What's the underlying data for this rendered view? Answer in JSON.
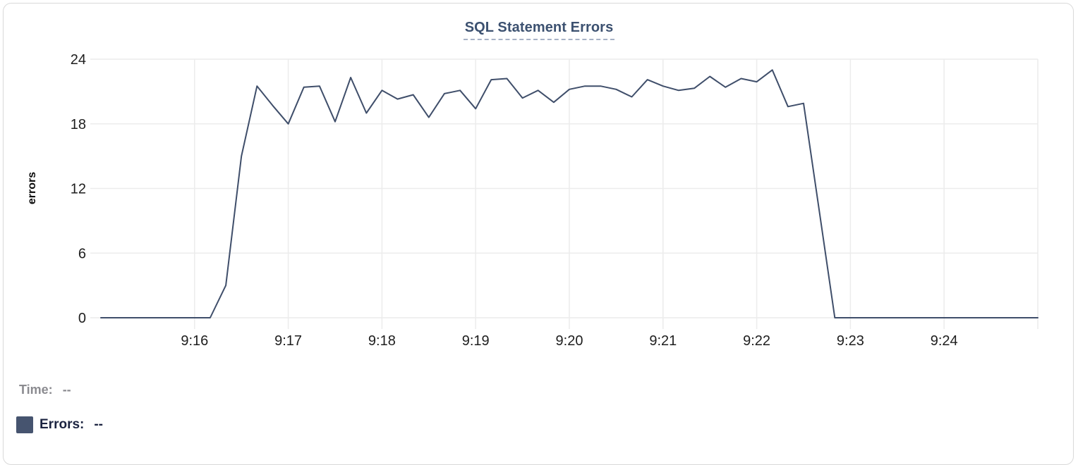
{
  "header": {
    "title": "SQL Statement Errors",
    "title_color": "#3c5170",
    "underline_color": "#a7b2c6"
  },
  "chart_data": {
    "type": "line",
    "title": "SQL Statement Errors",
    "xlabel": "",
    "ylabel": "errors",
    "ylim": [
      0,
      24
    ],
    "y_ticks": [
      0,
      6,
      12,
      18,
      24
    ],
    "x_ticks": [
      "9:16",
      "9:17",
      "9:18",
      "9:19",
      "9:20",
      "9:21",
      "9:22",
      "9:23",
      "9:24"
    ],
    "x_range_start": "9:15:00",
    "x_range_end": "9:25:00",
    "grid": true,
    "legend_position": "bottom-left",
    "line_color": "#3f4e6a",
    "grid_color": "#ececec",
    "tick_label_color": "#1e1e1e",
    "series": [
      {
        "name": "Errors",
        "x_start": "9:15:00",
        "x_step_seconds": 10,
        "values": [
          0,
          0,
          0,
          0,
          0,
          0,
          0,
          0,
          3,
          15,
          21.5,
          19.7,
          18,
          21.4,
          21.5,
          18.2,
          22.3,
          19,
          21.1,
          20.3,
          20.7,
          18.6,
          20.8,
          21.1,
          19.4,
          22.1,
          22.2,
          20.4,
          21.1,
          20,
          21.2,
          21.5,
          21.5,
          21.2,
          20.5,
          22.1,
          21.5,
          21.1,
          21.3,
          22.4,
          21.4,
          22.2,
          21.9,
          23,
          19.6,
          19.9,
          10,
          0,
          0,
          0,
          0,
          0,
          0,
          0,
          0,
          0,
          0,
          0,
          0,
          0,
          0
        ]
      }
    ]
  },
  "footer": {
    "time_label": "Time:",
    "time_value": "--",
    "errors_label": "Errors:",
    "errors_value": "--",
    "swatch_color": "#46546f",
    "time_color": "#8b8b90",
    "errors_color": "#1b2340"
  }
}
